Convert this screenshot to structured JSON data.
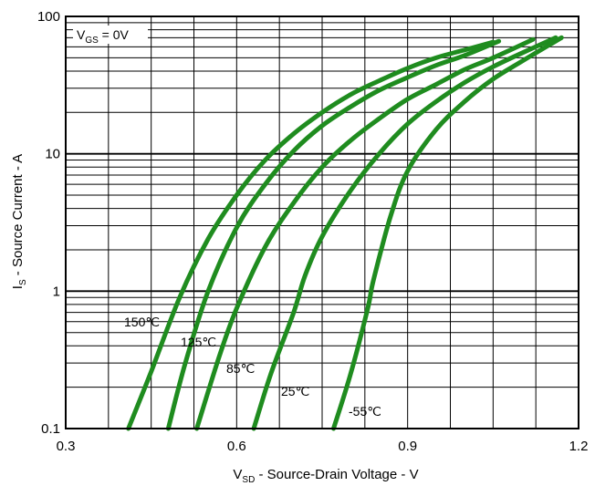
{
  "chart_data": {
    "type": "line",
    "title": "",
    "xlabel": {
      "prefix": "V",
      "sub": "SD",
      "suffix": " - Source-Drain Voltage - V"
    },
    "ylabel": {
      "prefix": "I",
      "sub": "S",
      "suffix": " - Source Current - A"
    },
    "xlim": [
      0.3,
      1.2
    ],
    "ylim": [
      0.1,
      100
    ],
    "yscale": "log",
    "grid": true,
    "x_ticks": [
      0.3,
      0.6,
      0.9,
      1.2
    ],
    "x_tick_labels": [
      "0.3",
      "0.6",
      "0.9",
      "1.2"
    ],
    "y_ticks": [
      0.1,
      1,
      10,
      100
    ],
    "y_tick_labels": [
      "0.1",
      "1",
      "10",
      "100"
    ],
    "condition": {
      "prefix": "V",
      "sub": "GS",
      "suffix": " = 0V"
    },
    "line_color": "#1f8c1f",
    "series": [
      {
        "name": "150℃",
        "x": [
          0.41,
          0.45,
          0.5,
          0.55,
          0.6,
          0.65,
          0.7,
          0.75,
          0.8,
          0.85,
          0.9,
          0.95,
          1.0,
          1.05
        ],
        "y": [
          0.1,
          0.26,
          0.9,
          2.4,
          5.0,
          9.0,
          14,
          20,
          27,
          34,
          42,
          50,
          57,
          65
        ]
      },
      {
        "name": "125℃",
        "x": [
          0.48,
          0.51,
          0.55,
          0.6,
          0.65,
          0.7,
          0.75,
          0.8,
          0.85,
          0.9,
          0.95,
          1.0,
          1.06
        ],
        "y": [
          0.1,
          0.3,
          1.0,
          2.9,
          6.0,
          10.5,
          16,
          22,
          29,
          36,
          44,
          52,
          66
        ]
      },
      {
        "name": "85℃",
        "x": [
          0.53,
          0.57,
          0.6,
          0.65,
          0.7,
          0.75,
          0.8,
          0.85,
          0.9,
          0.95,
          1.0,
          1.05,
          1.12
        ],
        "y": [
          0.1,
          0.34,
          0.75,
          2.1,
          4.4,
          8.0,
          12.5,
          18,
          25,
          32,
          41,
          50,
          68
        ]
      },
      {
        "name": "25℃",
        "x": [
          0.63,
          0.66,
          0.7,
          0.72,
          0.75,
          0.8,
          0.85,
          0.9,
          0.95,
          1.0,
          1.05,
          1.1,
          1.16
        ],
        "y": [
          0.1,
          0.25,
          0.7,
          1.3,
          2.5,
          5.4,
          10,
          16.5,
          24,
          33,
          43,
          54,
          70
        ]
      },
      {
        "name": "-55℃",
        "x": [
          0.77,
          0.8,
          0.83,
          0.84,
          0.87,
          0.9,
          0.95,
          1.0,
          1.05,
          1.1,
          1.17
        ],
        "y": [
          0.1,
          0.25,
          0.75,
          1.2,
          3.5,
          7.5,
          15,
          24,
          35,
          47,
          70
        ]
      }
    ],
    "label_positions_note": ""
  }
}
